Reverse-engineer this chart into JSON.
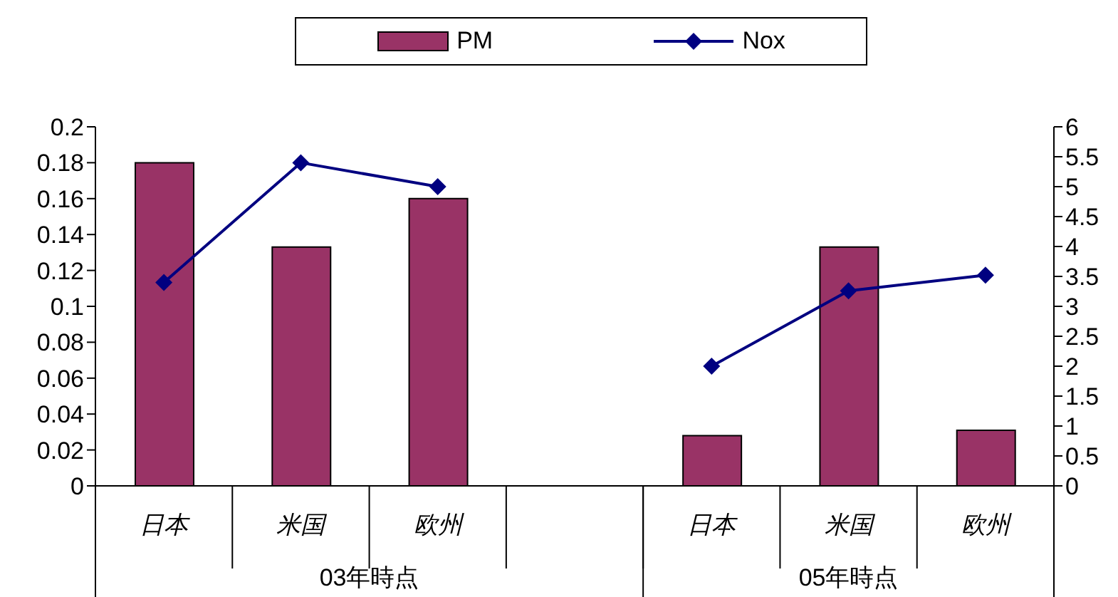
{
  "chart_data": {
    "type": "bar",
    "categories": [
      "日本",
      "米国",
      "欧州",
      null,
      "日本",
      "米国",
      "欧州"
    ],
    "series": [
      {
        "name": "PM",
        "color": "#993366",
        "values": [
          0.18,
          0.133,
          0.16,
          null,
          0.028,
          0.133,
          0.031
        ]
      },
      {
        "name": "Nox",
        "type": "line",
        "axis": "y2",
        "color": "#000080",
        "values": [
          3.4,
          5.4,
          5.0,
          null,
          2.0,
          3.26,
          3.52
        ]
      }
    ],
    "ylim": [
      0,
      0.2
    ],
    "yticks": [
      0,
      0.02,
      0.04,
      0.06,
      0.08,
      0.1,
      0.12,
      0.14,
      0.16,
      0.18,
      0.2
    ],
    "y2lim": [
      0,
      6
    ],
    "y2ticks": [
      0,
      0.5,
      1,
      1.5,
      2,
      2.5,
      3,
      3.5,
      4,
      4.5,
      5,
      5.5,
      6
    ],
    "annotations": [
      "03年時点",
      "05年時点"
    ],
    "legend": "top",
    "grid": false,
    "marker": "diamond",
    "line_style": "solid"
  }
}
